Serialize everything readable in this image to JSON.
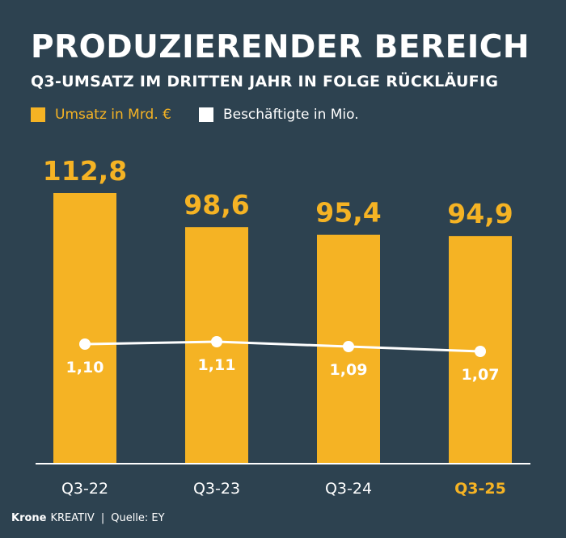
{
  "colors": {
    "background": "#2d4250",
    "bar": "#f5b324",
    "line": "#ffffff",
    "text": "#ffffff",
    "highlight": "#f5b324"
  },
  "chart_data": {
    "type": "bar",
    "title": "PRODUZIERENDER BEREICH",
    "subtitle": "Q3-UMSATZ IM DRITTEN JAHR IN FOLGE RÜCKLÄUFIG",
    "categories": [
      "Q3-22",
      "Q3-23",
      "Q3-24",
      "Q3-25"
    ],
    "highlight_category": "Q3-25",
    "series": [
      {
        "name": "Umsatz in Mrd. €",
        "type": "bar",
        "values": [
          112.8,
          98.6,
          95.4,
          94.9
        ],
        "labels": [
          "112,8",
          "98,6",
          "95,4",
          "94,9"
        ]
      },
      {
        "name": "Beschäftigte in Mio.",
        "type": "line",
        "values": [
          1.1,
          1.11,
          1.09,
          1.07
        ],
        "labels": [
          "1,10",
          "1,11",
          "1,09",
          "1,07"
        ]
      }
    ],
    "legend": [
      "Umsatz in Mrd. €",
      "Beschäftigte in Mio."
    ],
    "legend_position": "top-left",
    "grid": false
  },
  "footer": {
    "brand": "Krone",
    "brand_suffix": "KREATIV",
    "separator": "|",
    "source": "Quelle: EY"
  }
}
